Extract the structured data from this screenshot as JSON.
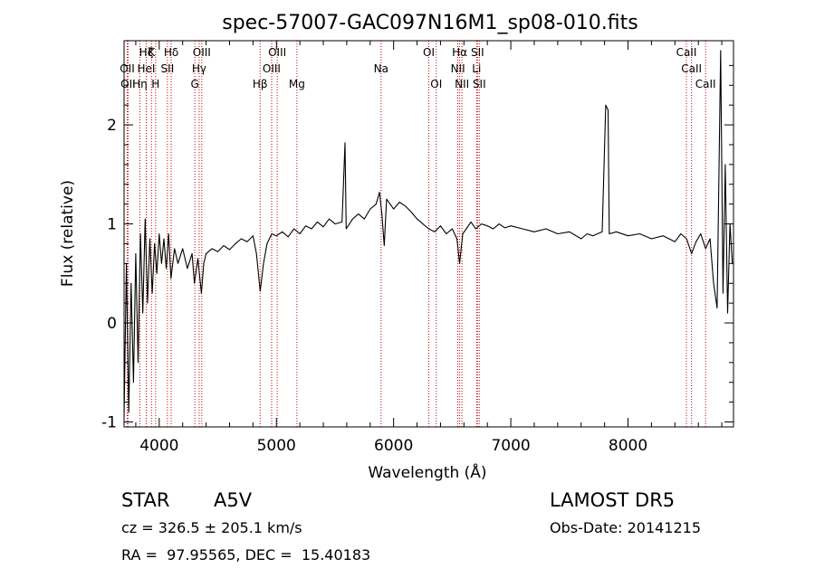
{
  "chart_data": {
    "type": "line",
    "title": "spec-57007-GAC097N16M1_sp08-010.fits",
    "xlabel": "Wavelength (Å)",
    "ylabel": "Flux (relative)",
    "xlim": [
      3700,
      8900
    ],
    "ylim": [
      -1.05,
      2.85
    ],
    "x_ticks": [
      4000,
      5000,
      6000,
      7000,
      8000
    ],
    "y_ticks": [
      -1,
      0,
      1,
      2
    ],
    "series": [
      {
        "color": "#000000",
        "points": [
          [
            3700,
            -0.95
          ],
          [
            3720,
            0.6
          ],
          [
            3740,
            -0.9
          ],
          [
            3760,
            0.4
          ],
          [
            3780,
            -0.6
          ],
          [
            3800,
            0.7
          ],
          [
            3820,
            -0.4
          ],
          [
            3840,
            0.9
          ],
          [
            3860,
            0.1
          ],
          [
            3880,
            1.05
          ],
          [
            3900,
            0.2
          ],
          [
            3920,
            0.85
          ],
          [
            3940,
            0.3
          ],
          [
            3960,
            0.8
          ],
          [
            3980,
            0.5
          ],
          [
            4000,
            0.9
          ],
          [
            4020,
            0.6
          ],
          [
            4040,
            0.85
          ],
          [
            4060,
            0.55
          ],
          [
            4080,
            0.9
          ],
          [
            4100,
            0.45
          ],
          [
            4130,
            0.75
          ],
          [
            4160,
            0.6
          ],
          [
            4200,
            0.75
          ],
          [
            4240,
            0.55
          ],
          [
            4280,
            0.7
          ],
          [
            4300,
            0.4
          ],
          [
            4330,
            0.65
          ],
          [
            4360,
            0.3
          ],
          [
            4380,
            0.6
          ],
          [
            4400,
            0.7
          ],
          [
            4450,
            0.75
          ],
          [
            4500,
            0.72
          ],
          [
            4550,
            0.78
          ],
          [
            4600,
            0.74
          ],
          [
            4650,
            0.8
          ],
          [
            4700,
            0.85
          ],
          [
            4750,
            0.82
          ],
          [
            4800,
            0.88
          ],
          [
            4830,
            0.7
          ],
          [
            4861,
            0.32
          ],
          [
            4890,
            0.6
          ],
          [
            4920,
            0.8
          ],
          [
            4960,
            0.9
          ],
          [
            5000,
            0.88
          ],
          [
            5050,
            0.92
          ],
          [
            5100,
            0.87
          ],
          [
            5150,
            0.95
          ],
          [
            5200,
            0.9
          ],
          [
            5250,
            0.98
          ],
          [
            5300,
            0.95
          ],
          [
            5350,
            1.02
          ],
          [
            5400,
            0.97
          ],
          [
            5450,
            1.05
          ],
          [
            5500,
            1.0
          ],
          [
            5560,
            1.02
          ],
          [
            5585,
            1.82
          ],
          [
            5595,
            0.95
          ],
          [
            5650,
            1.05
          ],
          [
            5700,
            1.1
          ],
          [
            5750,
            1.05
          ],
          [
            5800,
            1.15
          ],
          [
            5850,
            1.2
          ],
          [
            5880,
            1.32
          ],
          [
            5900,
            1.1
          ],
          [
            5920,
            0.78
          ],
          [
            5940,
            1.25
          ],
          [
            6000,
            1.15
          ],
          [
            6050,
            1.22
          ],
          [
            6100,
            1.18
          ],
          [
            6150,
            1.12
          ],
          [
            6200,
            1.05
          ],
          [
            6250,
            1.0
          ],
          [
            6300,
            0.95
          ],
          [
            6350,
            0.92
          ],
          [
            6400,
            0.98
          ],
          [
            6450,
            0.9
          ],
          [
            6500,
            0.95
          ],
          [
            6540,
            0.85
          ],
          [
            6563,
            0.6
          ],
          [
            6590,
            0.9
          ],
          [
            6620,
            0.95
          ],
          [
            6660,
            1.02
          ],
          [
            6700,
            0.95
          ],
          [
            6750,
            1.0
          ],
          [
            6800,
            0.98
          ],
          [
            6850,
            0.95
          ],
          [
            6900,
            1.0
          ],
          [
            6950,
            0.96
          ],
          [
            7000,
            0.98
          ],
          [
            7100,
            0.95
          ],
          [
            7200,
            0.92
          ],
          [
            7300,
            0.95
          ],
          [
            7400,
            0.9
          ],
          [
            7500,
            0.92
          ],
          [
            7600,
            0.85
          ],
          [
            7650,
            0.9
          ],
          [
            7700,
            0.88
          ],
          [
            7780,
            0.92
          ],
          [
            7810,
            2.2
          ],
          [
            7830,
            2.15
          ],
          [
            7840,
            0.9
          ],
          [
            7900,
            0.92
          ],
          [
            8000,
            0.88
          ],
          [
            8100,
            0.9
          ],
          [
            8200,
            0.85
          ],
          [
            8300,
            0.88
          ],
          [
            8400,
            0.82
          ],
          [
            8450,
            0.9
          ],
          [
            8500,
            0.85
          ],
          [
            8542,
            0.7
          ],
          [
            8580,
            0.82
          ],
          [
            8620,
            0.9
          ],
          [
            8662,
            0.75
          ],
          [
            8700,
            0.85
          ],
          [
            8730,
            0.4
          ],
          [
            8760,
            0.15
          ],
          [
            8790,
            2.75
          ],
          [
            8810,
            0.3
          ],
          [
            8830,
            1.6
          ],
          [
            8850,
            0.1
          ],
          [
            8870,
            1.0
          ],
          [
            8890,
            0.6
          ]
        ]
      }
    ],
    "lines": [
      {
        "x": 3727,
        "label": "OII",
        "row": 1
      },
      {
        "x": 3734,
        "label": "OII",
        "row": 2
      },
      {
        "x": 3835,
        "label": "Hη",
        "row": 2
      },
      {
        "x": 3889,
        "label": "Hζ",
        "row": 0
      },
      {
        "x": 3934,
        "label": "K",
        "row": 0
      },
      {
        "x": 3889,
        "label": "HeI",
        "row": 1
      },
      {
        "x": 3969,
        "label": "H",
        "row": 2
      },
      {
        "x": 4070,
        "label": "SII",
        "row": 1
      },
      {
        "x": 4102,
        "label": "Hδ",
        "row": 0
      },
      {
        "x": 4304,
        "label": "G",
        "row": 2
      },
      {
        "x": 4341,
        "label": "Hγ",
        "row": 1
      },
      {
        "x": 4363,
        "label": "OIII",
        "row": 0
      },
      {
        "x": 4861,
        "label": "Hβ",
        "row": 2
      },
      {
        "x": 4959,
        "label": "OIII",
        "row": 1
      },
      {
        "x": 5007,
        "label": "OIII",
        "row": 0
      },
      {
        "x": 5175,
        "label": "Mg",
        "row": 2
      },
      {
        "x": 5893,
        "label": "Na",
        "row": 1
      },
      {
        "x": 6300,
        "label": "OI",
        "row": 0
      },
      {
        "x": 6364,
        "label": "OI",
        "row": 2
      },
      {
        "x": 6548,
        "label": "NII",
        "row": 1
      },
      {
        "x": 6563,
        "label": "Hα",
        "row": 0
      },
      {
        "x": 6583,
        "label": "NII",
        "row": 2
      },
      {
        "x": 6708,
        "label": "Li",
        "row": 1
      },
      {
        "x": 6716,
        "label": "SII",
        "row": 0
      },
      {
        "x": 6731,
        "label": "SII",
        "row": 2
      },
      {
        "x": 8498,
        "label": "CaII",
        "row": 0
      },
      {
        "x": 8542,
        "label": "CaII",
        "row": 1
      },
      {
        "x": 8662,
        "label": "CaII",
        "row": 2
      }
    ],
    "line_color": "#cc0000"
  },
  "info": {
    "class_label": "STAR",
    "subclass": "A5V",
    "survey": "LAMOST DR5",
    "cz": "cz = 326.5 ± 205.1 km/s",
    "obs_date": "Obs-Date: 20141215",
    "coords": "RA =  97.95565, DEC =  15.40183"
  }
}
